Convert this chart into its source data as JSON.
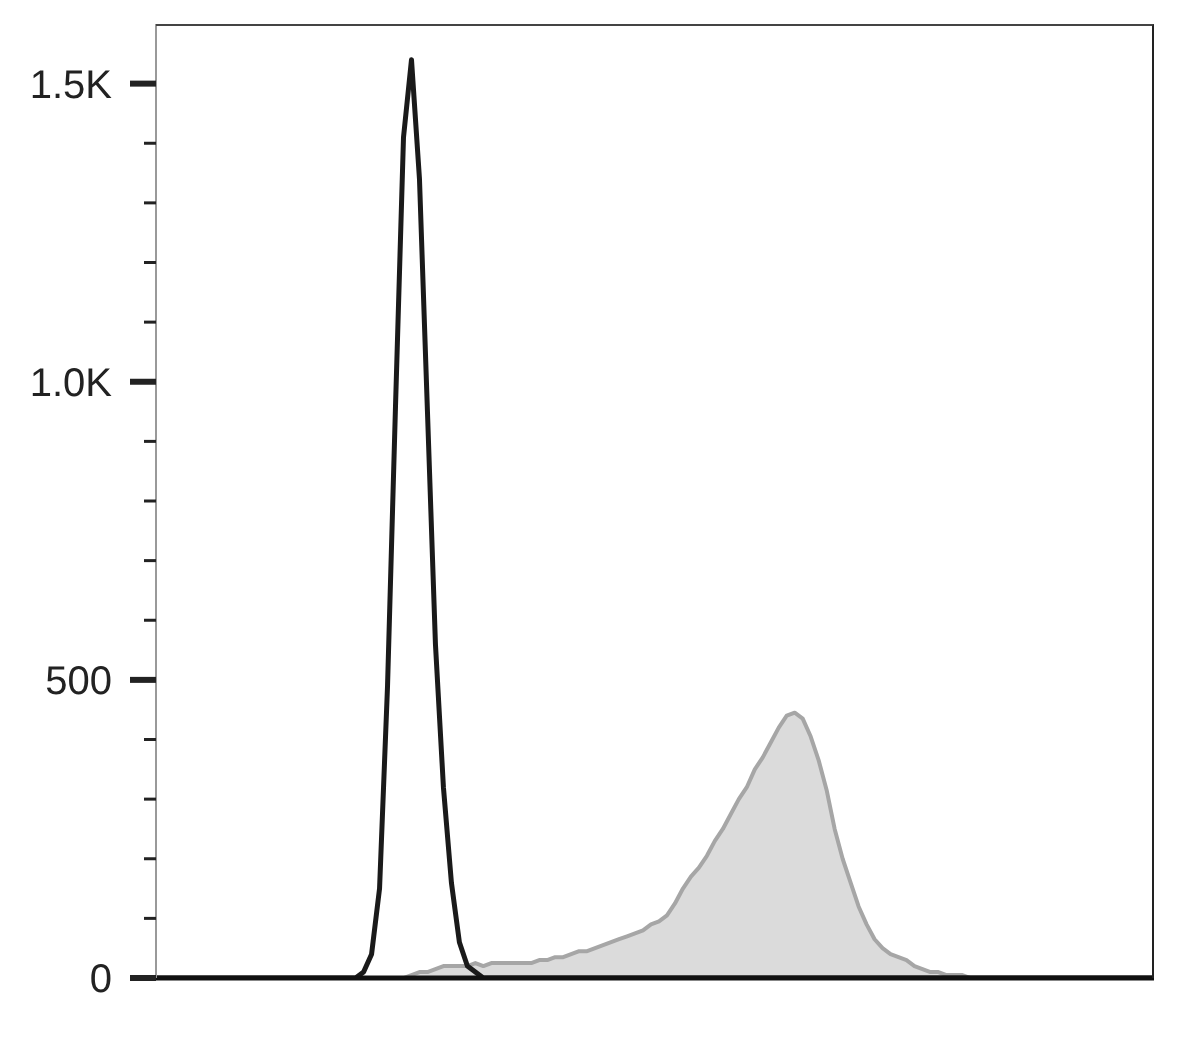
{
  "chart_data": {
    "type": "line",
    "categories": [
      null,
      null,
      null,
      null,
      null,
      null,
      null,
      null,
      null,
      null,
      null,
      null,
      null,
      null,
      null,
      null,
      null,
      null,
      null,
      null,
      null,
      null,
      null,
      null,
      null,
      null,
      null,
      null,
      null,
      null,
      null,
      null,
      null,
      null,
      null,
      null,
      null,
      null,
      null,
      null,
      null,
      null,
      null,
      null,
      null,
      null,
      null,
      null,
      null,
      null,
      null,
      null,
      null,
      null,
      null,
      null,
      null,
      null,
      null,
      null,
      null,
      null,
      null,
      null,
      null,
      null,
      null,
      null,
      null,
      null,
      null,
      null,
      null,
      null,
      null,
      null,
      null,
      null,
      null,
      null,
      null,
      null,
      null,
      null,
      null,
      null,
      null,
      null,
      null,
      null,
      null,
      null,
      null,
      null,
      null,
      null,
      null,
      null,
      null,
      null,
      null,
      null,
      null,
      null,
      null,
      null,
      null,
      null,
      null,
      null,
      null,
      null,
      null,
      null,
      null,
      null,
      null,
      null,
      null,
      null,
      null,
      null,
      null,
      null,
      null,
      null
    ],
    "series": [
      {
        "type": "area",
        "color": "#a6a6a6",
        "values": [
          0,
          0,
          0,
          0,
          0,
          0,
          0,
          0,
          0,
          0,
          0,
          0,
          0,
          0,
          0,
          0,
          0,
          0,
          0,
          0,
          0,
          0,
          0,
          0,
          0,
          0,
          0,
          0,
          0,
          0,
          0,
          0,
          5,
          10,
          10,
          15,
          20,
          20,
          20,
          20,
          25,
          20,
          25,
          25,
          25,
          25,
          25,
          25,
          30,
          30,
          35,
          35,
          40,
          45,
          45,
          50,
          55,
          60,
          65,
          70,
          75,
          80,
          90,
          95,
          105,
          125,
          150,
          170,
          185,
          205,
          230,
          250,
          275,
          300,
          320,
          350,
          370,
          395,
          420,
          440,
          445,
          435,
          405,
          365,
          315,
          250,
          200,
          160,
          120,
          90,
          65,
          50,
          40,
          35,
          30,
          20,
          15,
          10,
          10,
          5,
          5,
          5,
          0,
          0,
          0,
          0,
          0,
          0,
          0,
          0,
          0,
          0,
          0,
          0,
          0,
          0,
          0,
          0,
          0,
          0,
          0,
          0,
          0,
          0,
          0,
          0
        ]
      },
      {
        "type": "line",
        "color": "#1a1a1a",
        "values": [
          0,
          0,
          0,
          0,
          0,
          0,
          0,
          0,
          0,
          0,
          0,
          0,
          0,
          0,
          0,
          0,
          0,
          0,
          0,
          0,
          0,
          0,
          0,
          0,
          0,
          0,
          10,
          40,
          150,
          490,
          960,
          1410,
          1540,
          1340,
          950,
          560,
          320,
          160,
          60,
          20,
          10,
          0,
          0,
          0,
          0,
          0,
          0,
          0,
          0,
          0,
          0,
          0,
          0,
          0,
          0,
          0,
          0,
          0,
          0,
          0,
          0,
          0,
          0,
          0,
          0,
          0,
          0,
          0,
          0,
          0,
          0,
          0,
          0,
          0,
          0,
          0,
          0,
          0,
          0,
          0,
          0,
          0,
          0,
          0,
          0,
          0,
          0,
          0,
          0,
          0,
          0,
          0,
          0,
          0,
          0,
          0,
          0,
          0,
          0,
          0,
          0,
          0,
          0,
          0,
          0,
          0,
          0,
          0,
          0,
          0,
          0,
          0,
          0,
          0,
          0,
          0,
          0,
          0,
          0,
          0,
          0,
          0,
          0,
          0,
          0,
          0
        ]
      }
    ],
    "ylim": [
      0,
      1600
    ],
    "yticks": [
      0,
      {
        "value": 100,
        "label": null
      },
      {
        "value": 200,
        "label": null
      },
      {
        "value": 300,
        "label": null
      },
      {
        "value": 400,
        "label": null
      },
      500,
      {
        "value": 600,
        "label": null
      },
      {
        "value": 700,
        "label": null
      },
      {
        "value": 800,
        "label": null
      },
      {
        "value": 900,
        "label": null
      },
      {
        "value": 1000,
        "label": "1.0K"
      },
      {
        "value": 1100,
        "label": null
      },
      {
        "value": 1200,
        "label": null
      },
      {
        "value": 1300,
        "label": null
      },
      {
        "value": 1400,
        "label": null
      },
      {
        "value": 1500,
        "label": "1.5K"
      }
    ],
    "tick_labels": "y"
  }
}
